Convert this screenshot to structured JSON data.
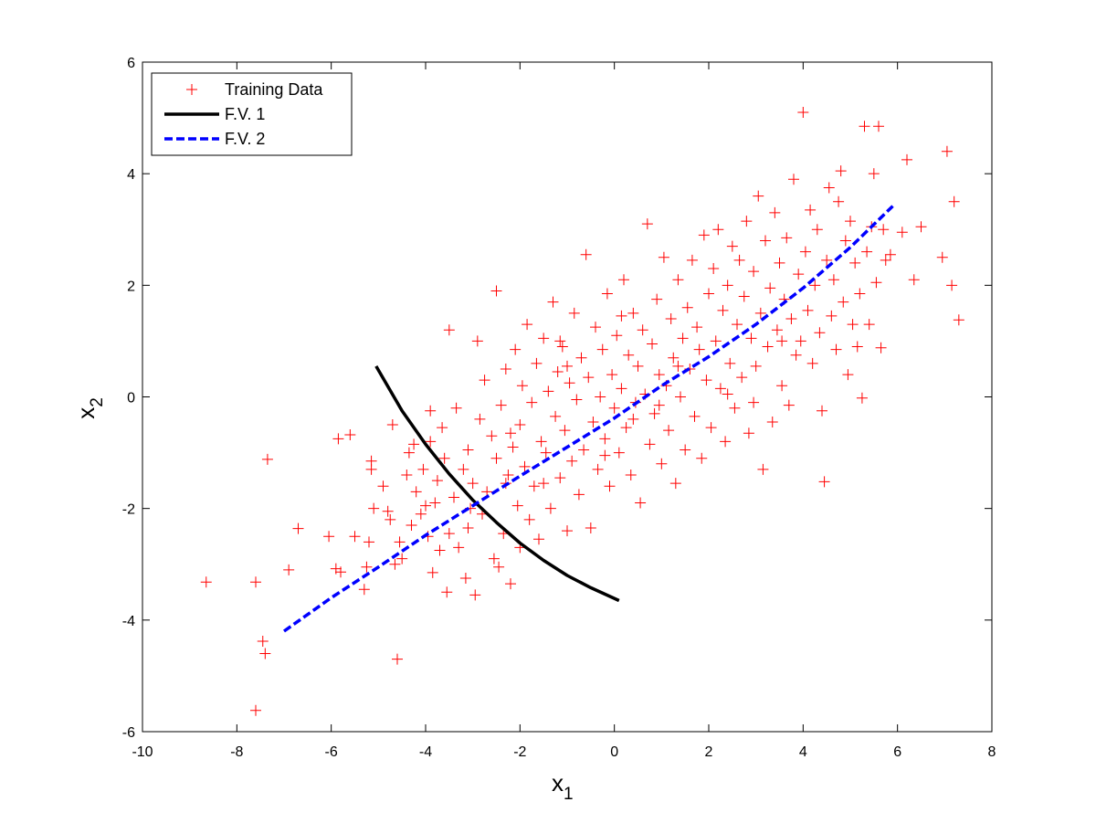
{
  "chart_data": {
    "type": "scatter",
    "xlabel": "x",
    "xlabel_sub": "1",
    "ylabel": "x",
    "ylabel_sub": "2",
    "xlim": [
      -10,
      8
    ],
    "ylim": [
      -6,
      6
    ],
    "xticks": [
      -10,
      -8,
      -6,
      -4,
      -2,
      0,
      2,
      4,
      6,
      8
    ],
    "yticks": [
      -6,
      -4,
      -2,
      0,
      2,
      4,
      6
    ],
    "grid": false,
    "legend_position": "top-left",
    "series": [
      {
        "name": "Training Data",
        "kind": "scatter",
        "marker": "+",
        "color": "#ff0000",
        "points": [
          [
            -8.65,
            -3.32
          ],
          [
            -7.6,
            -3.32
          ],
          [
            -7.6,
            -5.62
          ],
          [
            -7.45,
            -4.38
          ],
          [
            -7.4,
            -4.6
          ],
          [
            -7.35,
            -1.12
          ],
          [
            -6.9,
            -3.1
          ],
          [
            -6.7,
            -2.36
          ],
          [
            -6.05,
            -2.5
          ],
          [
            -5.9,
            -3.08
          ],
          [
            -5.85,
            -0.75
          ],
          [
            -5.8,
            -3.14
          ],
          [
            -5.6,
            -0.68
          ],
          [
            -5.5,
            -2.5
          ],
          [
            -5.3,
            -3.45
          ],
          [
            -5.25,
            -3.05
          ],
          [
            -5.2,
            -2.6
          ],
          [
            -5.15,
            -1.15
          ],
          [
            -5.15,
            -1.3
          ],
          [
            -5.1,
            -2.0
          ],
          [
            -4.9,
            -1.6
          ],
          [
            -4.8,
            -2.05
          ],
          [
            -4.75,
            -2.2
          ],
          [
            -4.7,
            -0.5
          ],
          [
            -4.65,
            -3.0
          ],
          [
            -4.6,
            -4.7
          ],
          [
            -4.55,
            -2.6
          ],
          [
            -4.5,
            -2.9
          ],
          [
            -4.4,
            -1.4
          ],
          [
            -4.35,
            -1.0
          ],
          [
            -4.3,
            -2.3
          ],
          [
            -4.25,
            -0.85
          ],
          [
            -4.2,
            -1.7
          ],
          [
            -4.1,
            -2.1
          ],
          [
            -4.05,
            -1.3
          ],
          [
            -3.95,
            -2.5
          ],
          [
            -3.9,
            -0.25
          ],
          [
            -3.9,
            -0.8
          ],
          [
            -3.85,
            -3.15
          ],
          [
            -3.8,
            -1.9
          ],
          [
            -3.75,
            -1.5
          ],
          [
            -3.7,
            -2.75
          ],
          [
            -3.65,
            -0.55
          ],
          [
            -3.6,
            -1.1
          ],
          [
            -3.55,
            -3.5
          ],
          [
            -3.5,
            -2.45
          ],
          [
            -3.5,
            1.2
          ],
          [
            -3.4,
            -1.8
          ],
          [
            -3.35,
            -0.2
          ],
          [
            -3.3,
            -2.7
          ],
          [
            -3.2,
            -1.3
          ],
          [
            -3.15,
            -3.25
          ],
          [
            -3.1,
            -0.95
          ],
          [
            -3.05,
            -2.0
          ],
          [
            -3.0,
            -1.55
          ],
          [
            -2.95,
            -3.55
          ],
          [
            -2.9,
            1.0
          ],
          [
            -2.85,
            -0.4
          ],
          [
            -2.8,
            -2.1
          ],
          [
            -2.75,
            0.3
          ],
          [
            -2.7,
            -1.7
          ],
          [
            -2.6,
            -0.7
          ],
          [
            -2.55,
            -2.9
          ],
          [
            -2.5,
            1.9
          ],
          [
            -2.5,
            -1.1
          ],
          [
            -2.45,
            -3.05
          ],
          [
            -2.4,
            -0.15
          ],
          [
            -2.35,
            -2.45
          ],
          [
            -2.3,
            0.5
          ],
          [
            -2.25,
            -1.4
          ],
          [
            -2.2,
            -3.35
          ],
          [
            -2.15,
            -0.9
          ],
          [
            -2.1,
            0.85
          ],
          [
            -2.05,
            -1.95
          ],
          [
            -2.0,
            -2.7
          ],
          [
            -2.0,
            -0.5
          ],
          [
            -1.95,
            0.2
          ],
          [
            -1.9,
            -1.25
          ],
          [
            -1.85,
            1.3
          ],
          [
            -1.8,
            -2.2
          ],
          [
            -1.75,
            -0.1
          ],
          [
            -1.7,
            -1.6
          ],
          [
            -1.65,
            0.6
          ],
          [
            -1.6,
            -2.55
          ],
          [
            -1.55,
            -0.8
          ],
          [
            -1.5,
            1.05
          ],
          [
            -1.45,
            -1.0
          ],
          [
            -1.4,
            0.1
          ],
          [
            -1.35,
            -2.0
          ],
          [
            -1.3,
            1.7
          ],
          [
            -1.25,
            -0.35
          ],
          [
            -1.2,
            0.45
          ],
          [
            -1.15,
            -1.45
          ],
          [
            -1.1,
            0.9
          ],
          [
            -1.05,
            -0.6
          ],
          [
            -1.0,
            -2.4
          ],
          [
            -0.95,
            0.25
          ],
          [
            -0.9,
            -1.15
          ],
          [
            -0.85,
            1.5
          ],
          [
            -0.8,
            -0.05
          ],
          [
            -0.75,
            -1.75
          ],
          [
            -0.7,
            0.7
          ],
          [
            -0.65,
            -0.95
          ],
          [
            -0.6,
            2.55
          ],
          [
            -0.55,
            0.35
          ],
          [
            -0.5,
            -2.35
          ],
          [
            -0.45,
            -0.45
          ],
          [
            -0.4,
            1.25
          ],
          [
            -0.35,
            -1.3
          ],
          [
            -0.3,
            0.0
          ],
          [
            -0.25,
            0.85
          ],
          [
            -0.2,
            -0.75
          ],
          [
            -0.15,
            1.85
          ],
          [
            -0.1,
            -1.6
          ],
          [
            -0.05,
            0.4
          ],
          [
            0.0,
            -0.2
          ],
          [
            0.05,
            1.1
          ],
          [
            0.1,
            -1.0
          ],
          [
            0.15,
            0.15
          ],
          [
            0.2,
            2.1
          ],
          [
            0.25,
            -0.55
          ],
          [
            0.3,
            0.75
          ],
          [
            0.35,
            -1.4
          ],
          [
            0.4,
            1.5
          ],
          [
            0.45,
            -0.1
          ],
          [
            0.5,
            0.55
          ],
          [
            0.55,
            -1.9
          ],
          [
            0.6,
            1.2
          ],
          [
            0.65,
            0.05
          ],
          [
            0.7,
            3.1
          ],
          [
            0.75,
            -0.85
          ],
          [
            0.8,
            0.95
          ],
          [
            0.85,
            -0.3
          ],
          [
            0.9,
            1.75
          ],
          [
            0.95,
            0.4
          ],
          [
            1.0,
            -1.2
          ],
          [
            1.05,
            2.5
          ],
          [
            1.1,
            0.2
          ],
          [
            1.15,
            -0.6
          ],
          [
            1.2,
            1.4
          ],
          [
            1.25,
            0.7
          ],
          [
            1.3,
            -1.55
          ],
          [
            1.35,
            2.1
          ],
          [
            1.4,
            0.0
          ],
          [
            1.45,
            1.05
          ],
          [
            1.5,
            -0.95
          ],
          [
            1.55,
            1.6
          ],
          [
            1.6,
            0.5
          ],
          [
            1.65,
            2.45
          ],
          [
            1.7,
            -0.35
          ],
          [
            1.75,
            1.25
          ],
          [
            1.8,
            0.85
          ],
          [
            1.85,
            -1.1
          ],
          [
            1.9,
            2.9
          ],
          [
            1.95,
            0.3
          ],
          [
            2.0,
            1.85
          ],
          [
            2.05,
            -0.55
          ],
          [
            2.1,
            2.3
          ],
          [
            2.15,
            1.0
          ],
          [
            2.2,
            3.0
          ],
          [
            2.25,
            0.15
          ],
          [
            2.3,
            1.55
          ],
          [
            2.35,
            -0.8
          ],
          [
            2.4,
            2.0
          ],
          [
            2.45,
            0.6
          ],
          [
            2.5,
            2.7
          ],
          [
            2.55,
            -0.2
          ],
          [
            2.6,
            1.3
          ],
          [
            2.65,
            2.45
          ],
          [
            2.7,
            0.35
          ],
          [
            2.75,
            1.8
          ],
          [
            2.8,
            3.15
          ],
          [
            2.85,
            -0.65
          ],
          [
            2.9,
            1.05
          ],
          [
            2.95,
            2.25
          ],
          [
            3.0,
            0.55
          ],
          [
            3.05,
            3.6
          ],
          [
            3.1,
            1.5
          ],
          [
            3.15,
            -1.3
          ],
          [
            3.2,
            2.8
          ],
          [
            3.25,
            0.9
          ],
          [
            3.3,
            1.95
          ],
          [
            3.35,
            -0.45
          ],
          [
            3.4,
            3.3
          ],
          [
            3.45,
            1.2
          ],
          [
            3.5,
            2.4
          ],
          [
            3.55,
            0.2
          ],
          [
            3.6,
            1.75
          ],
          [
            3.65,
            2.85
          ],
          [
            3.7,
            -0.15
          ],
          [
            3.75,
            1.4
          ],
          [
            3.8,
            3.9
          ],
          [
            3.85,
            0.75
          ],
          [
            3.9,
            2.2
          ],
          [
            3.95,
            1.0
          ],
          [
            4.0,
            5.1
          ],
          [
            4.05,
            2.6
          ],
          [
            4.1,
            1.55
          ],
          [
            4.15,
            3.35
          ],
          [
            4.2,
            0.6
          ],
          [
            4.25,
            2.0
          ],
          [
            4.3,
            3.0
          ],
          [
            4.35,
            1.15
          ],
          [
            4.4,
            -0.25
          ],
          [
            4.45,
            -1.52
          ],
          [
            4.5,
            2.45
          ],
          [
            4.55,
            3.75
          ],
          [
            4.6,
            1.45
          ],
          [
            4.65,
            2.1
          ],
          [
            4.7,
            0.85
          ],
          [
            4.75,
            3.5
          ],
          [
            4.8,
            4.05
          ],
          [
            4.85,
            1.7
          ],
          [
            4.9,
            2.8
          ],
          [
            4.95,
            0.4
          ],
          [
            5.0,
            3.15
          ],
          [
            5.05,
            1.3
          ],
          [
            5.1,
            2.4
          ],
          [
            5.15,
            0.9
          ],
          [
            5.2,
            1.85
          ],
          [
            5.25,
            -0.02
          ],
          [
            5.3,
            4.85
          ],
          [
            5.35,
            2.6
          ],
          [
            5.4,
            1.3
          ],
          [
            5.45,
            3.05
          ],
          [
            5.5,
            4.0
          ],
          [
            5.55,
            2.05
          ],
          [
            5.6,
            4.85
          ],
          [
            5.65,
            0.88
          ],
          [
            5.7,
            3.0
          ],
          [
            5.75,
            2.45
          ],
          [
            5.85,
            2.55
          ],
          [
            6.1,
            2.95
          ],
          [
            6.2,
            4.25
          ],
          [
            6.35,
            2.1
          ],
          [
            6.5,
            3.05
          ],
          [
            6.95,
            2.5
          ],
          [
            7.05,
            4.4
          ],
          [
            7.15,
            2.0
          ],
          [
            7.2,
            3.5
          ],
          [
            7.3,
            1.38
          ],
          [
            -2.2,
            -0.65
          ],
          [
            -1.0,
            0.55
          ],
          [
            0.4,
            -0.4
          ],
          [
            1.35,
            0.55
          ],
          [
            -1.5,
            -1.55
          ],
          [
            -0.2,
            -1.05
          ],
          [
            0.95,
            -0.15
          ],
          [
            2.4,
            0.05
          ],
          [
            -3.1,
            -2.35
          ],
          [
            -2.3,
            -1.55
          ],
          [
            0.15,
            1.45
          ],
          [
            -1.15,
            1.0
          ],
          [
            3.55,
            1.0
          ],
          [
            2.95,
            -0.1
          ],
          [
            -4.0,
            -1.95
          ]
        ]
      },
      {
        "name": "F.V. 1",
        "kind": "line",
        "style": "solid",
        "color": "#000000",
        "points": [
          [
            -5.05,
            0.55
          ],
          [
            -4.5,
            -0.25
          ],
          [
            -4.0,
            -0.85
          ],
          [
            -3.5,
            -1.38
          ],
          [
            -3.0,
            -1.85
          ],
          [
            -2.5,
            -2.25
          ],
          [
            -2.0,
            -2.62
          ],
          [
            -1.5,
            -2.93
          ],
          [
            -1.0,
            -3.2
          ],
          [
            -0.5,
            -3.42
          ],
          [
            0.1,
            -3.65
          ]
        ]
      },
      {
        "name": "F.V. 2",
        "kind": "line",
        "style": "dashed",
        "color": "#0000ff",
        "points": [
          [
            -7.0,
            -4.2
          ],
          [
            -6.0,
            -3.6
          ],
          [
            -5.0,
            -3.05
          ],
          [
            -4.0,
            -2.48
          ],
          [
            -3.0,
            -1.95
          ],
          [
            -2.0,
            -1.42
          ],
          [
            -1.0,
            -0.9
          ],
          [
            0.0,
            -0.38
          ],
          [
            1.0,
            0.2
          ],
          [
            2.0,
            0.72
          ],
          [
            3.0,
            1.3
          ],
          [
            4.0,
            1.95
          ],
          [
            5.0,
            2.68
          ],
          [
            5.9,
            3.42
          ]
        ]
      }
    ]
  }
}
